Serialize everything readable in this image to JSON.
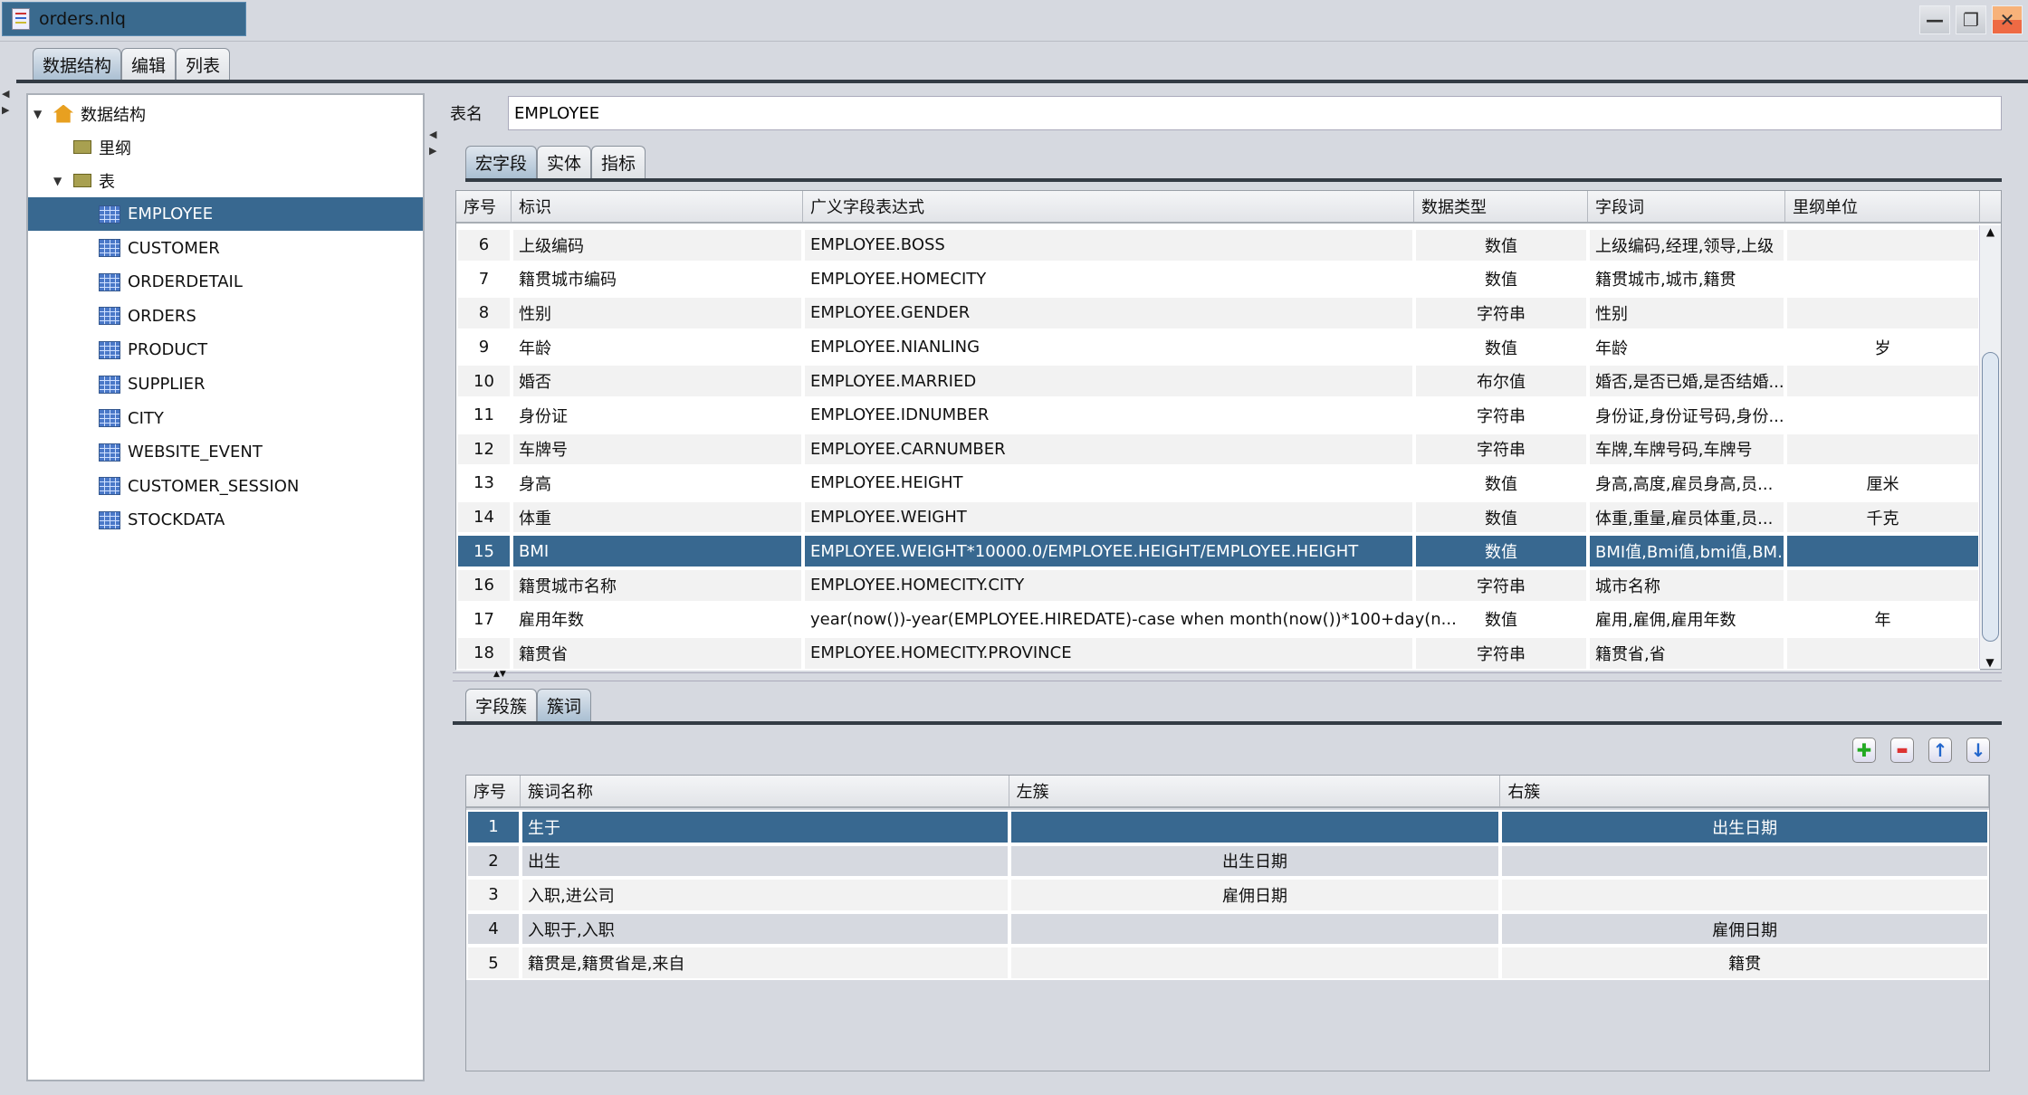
{
  "window": {
    "title": "orders.nlq",
    "minimize": "—",
    "restore": "❐",
    "close": "✕"
  },
  "main_tabs": [
    {
      "label": "数据结构",
      "selected": true
    },
    {
      "label": "编辑"
    },
    {
      "label": "列表"
    }
  ],
  "tree": {
    "root": "数据结构",
    "folders": [
      "里纲",
      "表"
    ],
    "tables": [
      "EMPLOYEE",
      "CUSTOMER",
      "ORDERDETAIL",
      "ORDERS",
      "PRODUCT",
      "SUPPLIER",
      "CITY",
      "WEBSITE_EVENT",
      "CUSTOMER_SESSION",
      "STOCKDATA"
    ],
    "selected": "EMPLOYEE"
  },
  "table_name": {
    "label": "表名",
    "value": "EMPLOYEE"
  },
  "sub_tabs": [
    {
      "label": "宏字段",
      "selected": true
    },
    {
      "label": "实体"
    },
    {
      "label": "指标"
    }
  ],
  "fields": {
    "columns": [
      "序号",
      "标识",
      "广义字段表达式",
      "数据类型",
      "字段词",
      "里纲单位"
    ],
    "selected_index": 9,
    "rows": [
      [
        "6",
        "上级编码",
        "EMPLOYEE.BOSS",
        "数值",
        "上级编码,经理,领导,上级",
        ""
      ],
      [
        "7",
        "籍贯城市编码",
        "EMPLOYEE.HOMECITY",
        "数值",
        "籍贯城市,城市,籍贯",
        ""
      ],
      [
        "8",
        "性别",
        "EMPLOYEE.GENDER",
        "字符串",
        "性别",
        ""
      ],
      [
        "9",
        "年龄",
        "EMPLOYEE.NIANLING",
        "数值",
        "年龄",
        "岁"
      ],
      [
        "10",
        "婚否",
        "EMPLOYEE.MARRIED",
        "布尔值",
        "婚否,是否已婚,是否结婚...",
        ""
      ],
      [
        "11",
        "身份证",
        "EMPLOYEE.IDNUMBER",
        "字符串",
        "身份证,身份证号码,身份...",
        ""
      ],
      [
        "12",
        "车牌号",
        "EMPLOYEE.CARNUMBER",
        "字符串",
        "车牌,车牌号码,车牌号",
        ""
      ],
      [
        "13",
        "身高",
        "EMPLOYEE.HEIGHT",
        "数值",
        "身高,高度,雇员身高,员...",
        "厘米"
      ],
      [
        "14",
        "体重",
        "EMPLOYEE.WEIGHT",
        "数值",
        "体重,重量,雇员体重,员...",
        "千克"
      ],
      [
        "15",
        "BMI",
        "EMPLOYEE.WEIGHT*10000.0/EMPLOYEE.HEIGHT/EMPLOYEE.HEIGHT",
        "数值",
        "BMI值,Bmi值,bmi值,BM...",
        ""
      ],
      [
        "16",
        "籍贯城市名称",
        "EMPLOYEE.HOMECITY.CITY",
        "字符串",
        "城市名称",
        ""
      ],
      [
        "17",
        "雇用年数",
        "year(now())-year(EMPLOYEE.HIREDATE)-case when month(now())*100+day(n...",
        "数值",
        "雇用,雇佣,雇用年数",
        "年"
      ],
      [
        "18",
        "籍贯省",
        "EMPLOYEE.HOMECITY.PROVINCE",
        "字符串",
        "籍贯省,省",
        ""
      ]
    ]
  },
  "bottom_tabs": [
    {
      "label": "字段簇"
    },
    {
      "label": "簇词",
      "selected": true
    }
  ],
  "toolbar": [
    {
      "icon": "add-icon",
      "glyph": "✚",
      "color": "#2a2"
    },
    {
      "icon": "remove-icon",
      "glyph": "▬",
      "color": "#d33"
    },
    {
      "icon": "move-up-icon",
      "glyph": "🡅",
      "color": "#26c"
    },
    {
      "icon": "move-down-icon",
      "glyph": "🡇",
      "color": "#26c"
    }
  ],
  "clusters": {
    "columns": [
      "序号",
      "簇词名称",
      "左簇",
      "右簇"
    ],
    "selected_index": 0,
    "rows": [
      [
        "1",
        "生于",
        "",
        "出生日期"
      ],
      [
        "2",
        "出生",
        "出生日期",
        ""
      ],
      [
        "3",
        "入职,进公司",
        "雇佣日期",
        ""
      ],
      [
        "4",
        "入职于,入职",
        "",
        "雇佣日期"
      ],
      [
        "5",
        "籍贯是,籍贯省是,来自",
        "",
        "籍贯"
      ]
    ]
  },
  "colors": {
    "selection": "#386890",
    "background": "#d6d9e0"
  }
}
